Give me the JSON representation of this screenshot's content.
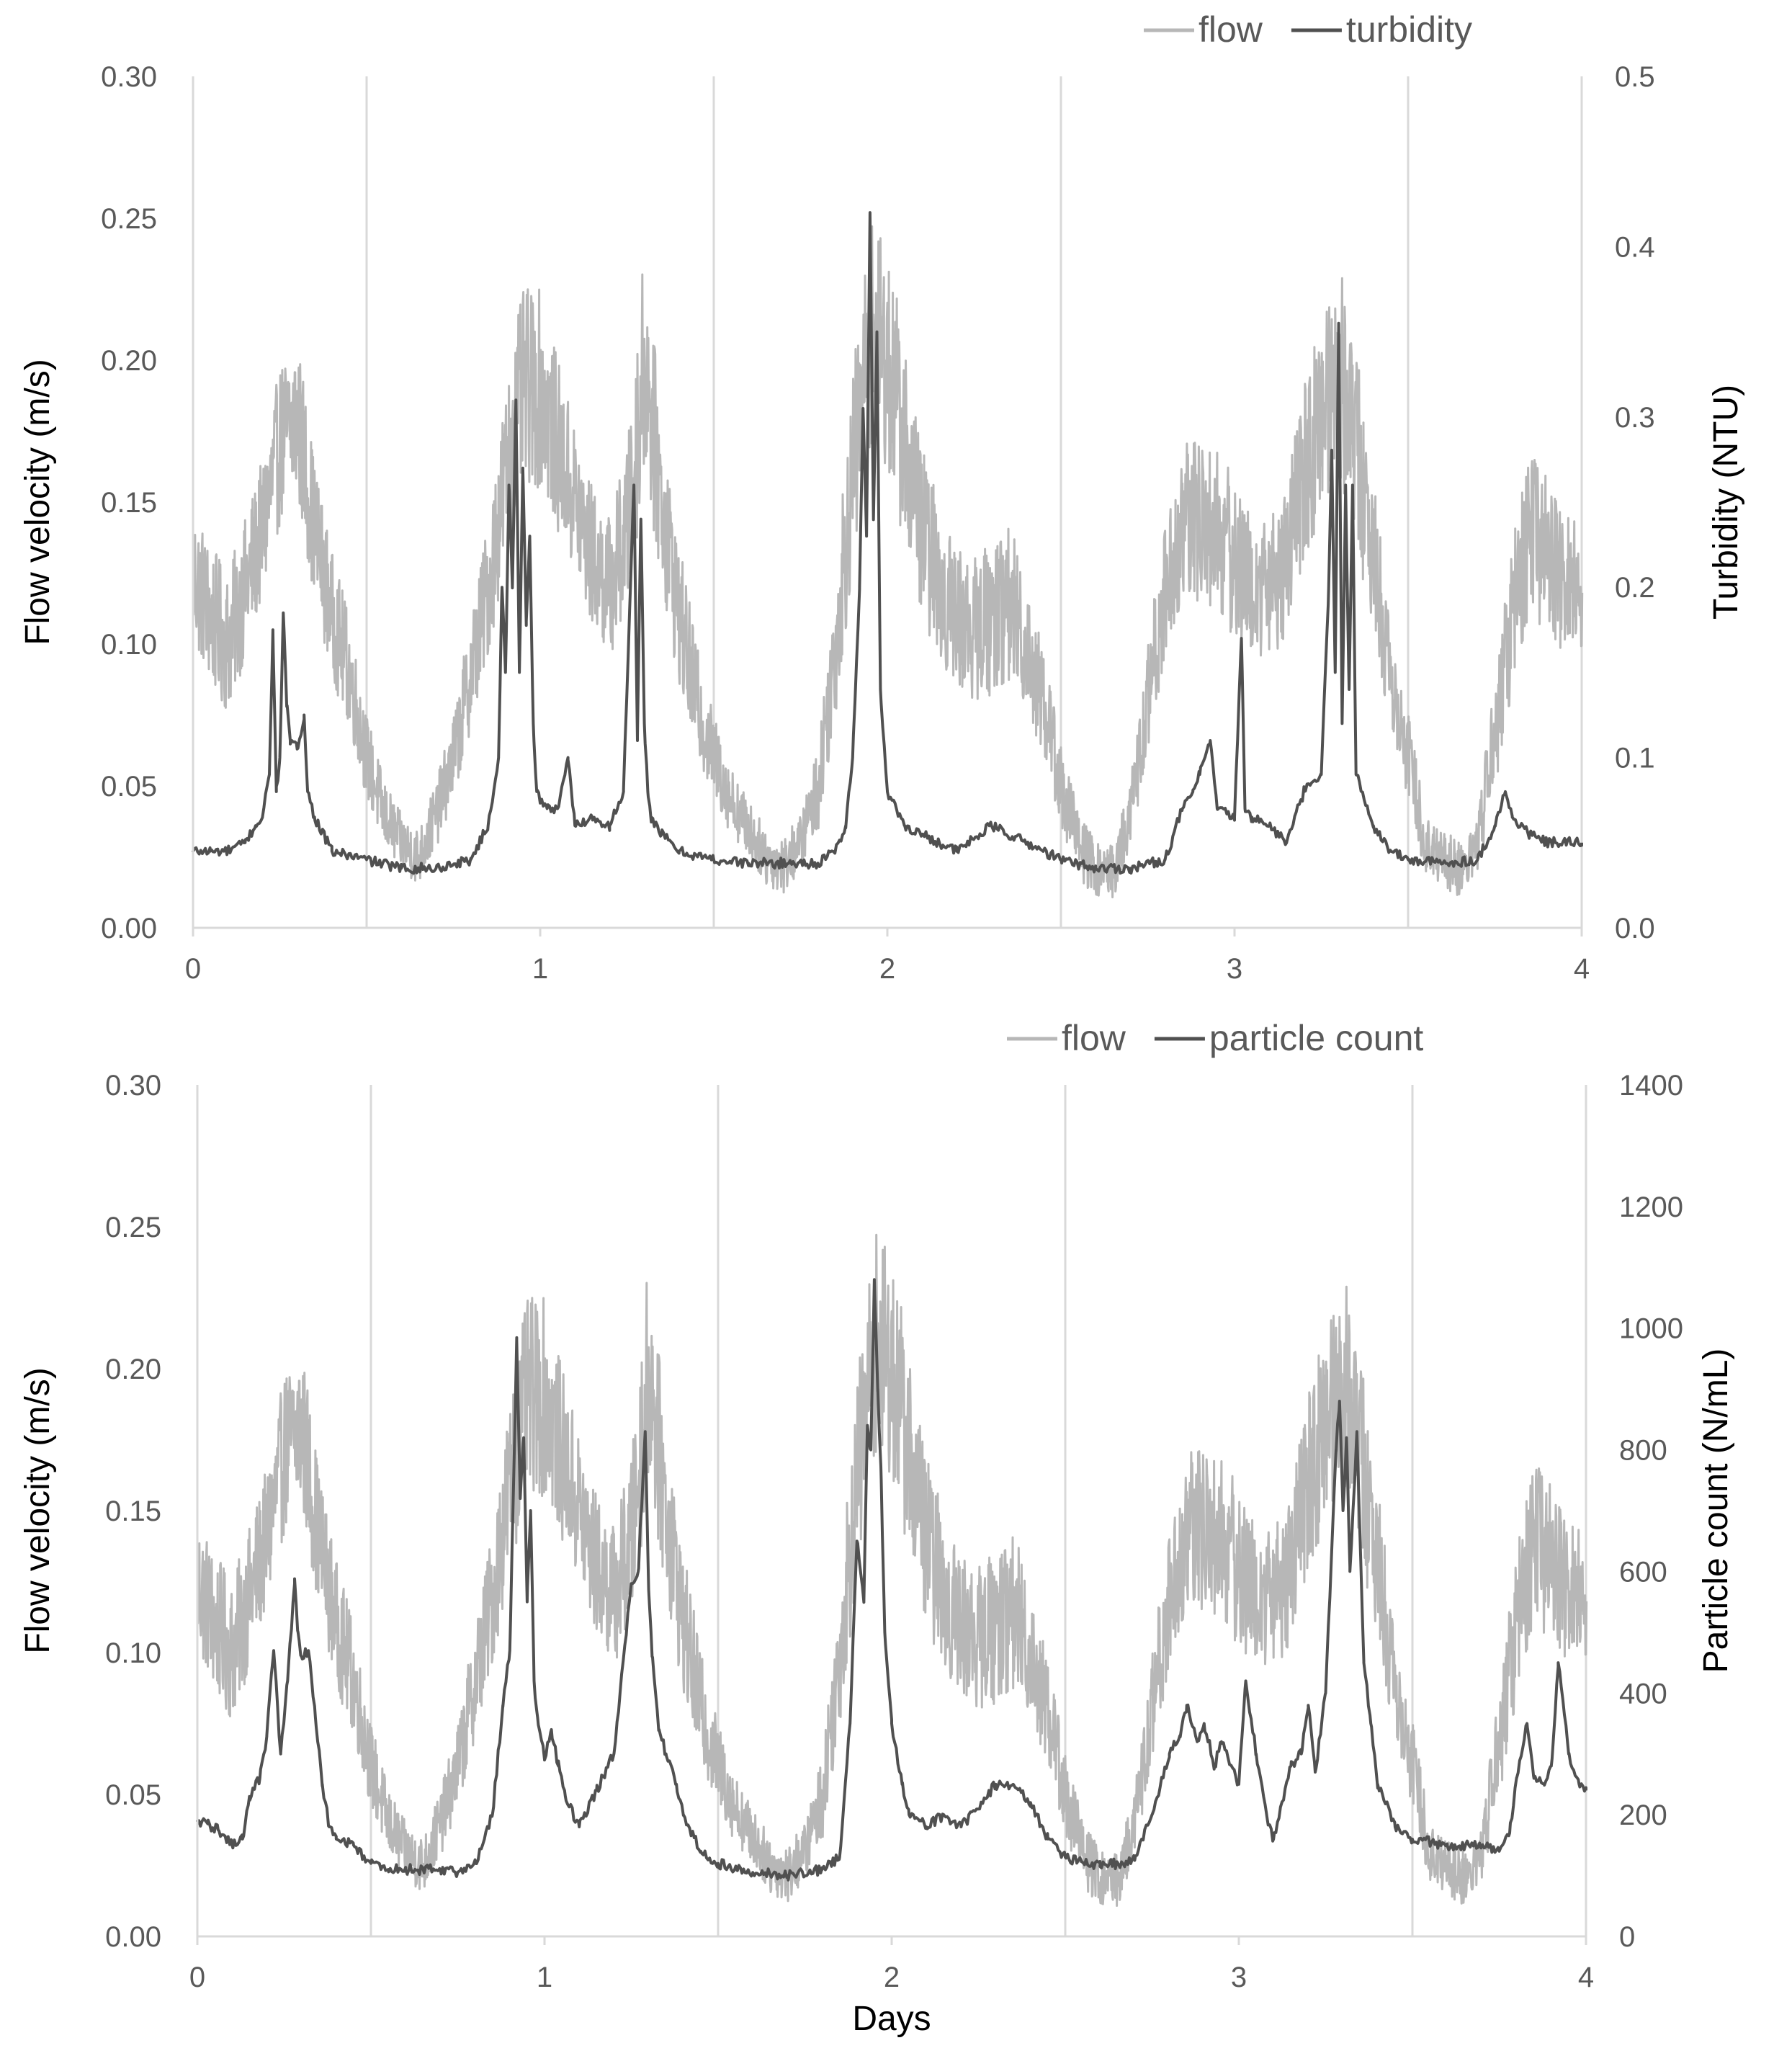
{
  "colors": {
    "flow": "#b7b7b7",
    "dark_series": "#505050",
    "grid": "#d9d9d9",
    "tick_text": "#595959"
  },
  "chart_data": [
    {
      "type": "line",
      "title": "",
      "xlabel": "",
      "ylabel": "Flow velocity (m/s)",
      "y2label": "Turbidity (NTU)",
      "xlim": [
        0,
        4
      ],
      "ylim": [
        0,
        0.3
      ],
      "y2lim": [
        0,
        0.5
      ],
      "x_ticks": [
        "0",
        "1",
        "2",
        "3",
        "4"
      ],
      "x_tick_values": [
        0,
        1,
        2,
        3,
        4
      ],
      "y_ticks": [
        "0.00",
        "0.05",
        "0.10",
        "0.15",
        "0.20",
        "0.25",
        "0.30"
      ],
      "y2_ticks": [
        "0.0",
        "0.1",
        "0.2",
        "0.3",
        "0.4",
        "0.5"
      ],
      "vertical_gridlines_at": [
        0.5,
        1.5,
        2.5,
        3.5,
        4.0
      ],
      "legend": [
        "flow",
        "turbidity"
      ],
      "legend_position": "top-right",
      "series": [
        {
          "name": "flow",
          "axis": "left",
          "band": true,
          "x": [
            0,
            0.05,
            0.1,
            0.15,
            0.2,
            0.25,
            0.3,
            0.35,
            0.4,
            0.45,
            0.5,
            0.55,
            0.6,
            0.65,
            0.7,
            0.75,
            0.8,
            0.85,
            0.9,
            0.95,
            1.0,
            1.05,
            1.1,
            1.15,
            1.2,
            1.25,
            1.3,
            1.35,
            1.4,
            1.45,
            1.5,
            1.55,
            1.6,
            1.65,
            1.7,
            1.75,
            1.8,
            1.85,
            1.9,
            1.95,
            2.0,
            2.05,
            2.1,
            2.15,
            2.2,
            2.25,
            2.3,
            2.35,
            2.4,
            2.45,
            2.5,
            2.55,
            2.6,
            2.65,
            2.7,
            2.75,
            2.8,
            2.85,
            2.9,
            2.95,
            3.0,
            3.05,
            3.1,
            3.15,
            3.2,
            3.25,
            3.3,
            3.35,
            3.4,
            3.45,
            3.5,
            3.55,
            3.6,
            3.65,
            3.7,
            3.75,
            3.8,
            3.85,
            3.9,
            3.95,
            4.0
          ],
          "values": [
            0.125,
            0.11,
            0.1,
            0.12,
            0.14,
            0.17,
            0.18,
            0.14,
            0.11,
            0.09,
            0.06,
            0.04,
            0.03,
            0.025,
            0.04,
            0.06,
            0.09,
            0.12,
            0.16,
            0.19,
            0.19,
            0.17,
            0.15,
            0.13,
            0.12,
            0.14,
            0.2,
            0.15,
            0.11,
            0.08,
            0.06,
            0.045,
            0.035,
            0.025,
            0.022,
            0.03,
            0.05,
            0.1,
            0.16,
            0.21,
            0.2,
            0.17,
            0.14,
            0.12,
            0.11,
            0.105,
            0.11,
            0.115,
            0.1,
            0.08,
            0.05,
            0.03,
            0.02,
            0.02,
            0.04,
            0.08,
            0.12,
            0.14,
            0.145,
            0.14,
            0.13,
            0.12,
            0.12,
            0.13,
            0.16,
            0.18,
            0.2,
            0.17,
            0.13,
            0.09,
            0.06,
            0.03,
            0.025,
            0.02,
            0.03,
            0.07,
            0.11,
            0.14,
            0.13,
            0.12,
            0.12
          ],
          "noise_amplitude": [
            0.025,
            0.025,
            0.025,
            0.025,
            0.025,
            0.028,
            0.03,
            0.025,
            0.022,
            0.02,
            0.015,
            0.012,
            0.01,
            0.01,
            0.012,
            0.015,
            0.02,
            0.025,
            0.03,
            0.035,
            0.035,
            0.03,
            0.028,
            0.025,
            0.025,
            0.03,
            0.04,
            0.03,
            0.025,
            0.02,
            0.015,
            0.012,
            0.01,
            0.01,
            0.01,
            0.01,
            0.015,
            0.025,
            0.035,
            0.04,
            0.04,
            0.035,
            0.03,
            0.028,
            0.025,
            0.025,
            0.028,
            0.028,
            0.025,
            0.02,
            0.015,
            0.012,
            0.01,
            0.01,
            0.012,
            0.02,
            0.025,
            0.03,
            0.03,
            0.03,
            0.028,
            0.025,
            0.025,
            0.028,
            0.032,
            0.035,
            0.04,
            0.035,
            0.028,
            0.02,
            0.015,
            0.012,
            0.01,
            0.01,
            0.012,
            0.02,
            0.028,
            0.03,
            0.028,
            0.025,
            0.025
          ]
        },
        {
          "name": "turbidity",
          "axis": "right",
          "x": [
            0,
            0.05,
            0.1,
            0.15,
            0.18,
            0.2,
            0.22,
            0.23,
            0.24,
            0.25,
            0.26,
            0.27,
            0.28,
            0.3,
            0.32,
            0.33,
            0.35,
            0.4,
            0.5,
            0.6,
            0.7,
            0.8,
            0.85,
            0.88,
            0.89,
            0.9,
            0.91,
            0.92,
            0.93,
            0.94,
            0.95,
            0.96,
            0.97,
            0.98,
            0.99,
            1.0,
            1.02,
            1.05,
            1.08,
            1.1,
            1.15,
            1.2,
            1.24,
            1.26,
            1.27,
            1.28,
            1.29,
            1.3,
            1.31,
            1.32,
            1.35,
            1.4,
            1.5,
            1.6,
            1.7,
            1.8,
            1.85,
            1.88,
            1.9,
            1.92,
            1.93,
            1.94,
            1.95,
            1.96,
            1.97,
            1.98,
            2.0,
            2.05,
            2.1,
            2.2,
            2.3,
            2.4,
            2.5,
            2.6,
            2.7,
            2.8,
            2.85,
            2.88,
            2.9,
            2.93,
            2.95,
            3.0,
            3.02,
            3.03,
            3.05,
            3.1,
            3.15,
            3.2,
            3.25,
            3.27,
            3.28,
            3.29,
            3.3,
            3.31,
            3.32,
            3.33,
            3.34,
            3.35,
            3.4,
            3.45,
            3.5,
            3.6,
            3.7,
            3.75,
            3.78,
            3.8,
            3.85,
            3.9,
            4.0
          ],
          "values": [
            0.045,
            0.045,
            0.045,
            0.05,
            0.06,
            0.065,
            0.09,
            0.175,
            0.08,
            0.1,
            0.185,
            0.13,
            0.11,
            0.105,
            0.125,
            0.08,
            0.065,
            0.045,
            0.04,
            0.035,
            0.035,
            0.04,
            0.06,
            0.1,
            0.2,
            0.15,
            0.26,
            0.2,
            0.31,
            0.15,
            0.27,
            0.18,
            0.23,
            0.12,
            0.08,
            0.075,
            0.07,
            0.07,
            0.1,
            0.06,
            0.065,
            0.06,
            0.08,
            0.2,
            0.26,
            0.11,
            0.24,
            0.12,
            0.08,
            0.065,
            0.055,
            0.045,
            0.04,
            0.038,
            0.038,
            0.038,
            0.045,
            0.06,
            0.1,
            0.2,
            0.305,
            0.23,
            0.42,
            0.24,
            0.35,
            0.14,
            0.08,
            0.06,
            0.055,
            0.045,
            0.06,
            0.05,
            0.04,
            0.035,
            0.035,
            0.04,
            0.07,
            0.08,
            0.09,
            0.11,
            0.07,
            0.065,
            0.17,
            0.07,
            0.065,
            0.06,
            0.05,
            0.08,
            0.09,
            0.19,
            0.28,
            0.15,
            0.355,
            0.12,
            0.26,
            0.14,
            0.26,
            0.09,
            0.06,
            0.045,
            0.04,
            0.038,
            0.04,
            0.06,
            0.08,
            0.065,
            0.055,
            0.05,
            0.05
          ]
        }
      ]
    },
    {
      "type": "line",
      "title": "",
      "xlabel": "Days",
      "ylabel": "Flow velocity (m/s)",
      "y2label": "Particle count (N/mL)",
      "xlim": [
        0,
        4
      ],
      "ylim": [
        0,
        0.3
      ],
      "y2lim": [
        0,
        1400
      ],
      "x_ticks": [
        "0",
        "1",
        "2",
        "3",
        "4"
      ],
      "x_tick_values": [
        0,
        1,
        2,
        3,
        4
      ],
      "y_ticks": [
        "0.00",
        "0.05",
        "0.10",
        "0.15",
        "0.20",
        "0.25",
        "0.30"
      ],
      "y2_ticks": [
        "0",
        "200",
        "400",
        "600",
        "800",
        "1000",
        "1200",
        "1400"
      ],
      "vertical_gridlines_at": [
        0.5,
        1.5,
        2.5,
        3.5,
        4.0
      ],
      "legend": [
        "flow",
        "particle count"
      ],
      "legend_position": "top-right",
      "series": [
        {
          "name": "flow",
          "axis": "left",
          "band": true,
          "x": [
            0,
            0.05,
            0.1,
            0.15,
            0.2,
            0.25,
            0.3,
            0.35,
            0.4,
            0.45,
            0.5,
            0.55,
            0.6,
            0.65,
            0.7,
            0.75,
            0.8,
            0.85,
            0.9,
            0.95,
            1.0,
            1.05,
            1.1,
            1.15,
            1.2,
            1.25,
            1.3,
            1.35,
            1.4,
            1.45,
            1.5,
            1.55,
            1.6,
            1.65,
            1.7,
            1.75,
            1.8,
            1.85,
            1.9,
            1.95,
            2.0,
            2.05,
            2.1,
            2.15,
            2.2,
            2.25,
            2.3,
            2.35,
            2.4,
            2.45,
            2.5,
            2.55,
            2.6,
            2.65,
            2.7,
            2.75,
            2.8,
            2.85,
            2.9,
            2.95,
            3.0,
            3.05,
            3.1,
            3.15,
            3.2,
            3.25,
            3.3,
            3.35,
            3.4,
            3.45,
            3.5,
            3.55,
            3.6,
            3.65,
            3.7,
            3.75,
            3.8,
            3.85,
            3.9,
            3.95,
            4.0
          ],
          "values": [
            0.125,
            0.11,
            0.1,
            0.12,
            0.14,
            0.17,
            0.18,
            0.14,
            0.11,
            0.09,
            0.06,
            0.04,
            0.03,
            0.025,
            0.04,
            0.06,
            0.09,
            0.12,
            0.16,
            0.19,
            0.19,
            0.17,
            0.15,
            0.13,
            0.12,
            0.14,
            0.2,
            0.15,
            0.11,
            0.08,
            0.06,
            0.045,
            0.035,
            0.025,
            0.022,
            0.03,
            0.05,
            0.1,
            0.16,
            0.21,
            0.2,
            0.17,
            0.14,
            0.12,
            0.11,
            0.105,
            0.11,
            0.115,
            0.1,
            0.08,
            0.05,
            0.03,
            0.02,
            0.02,
            0.04,
            0.08,
            0.12,
            0.14,
            0.145,
            0.14,
            0.13,
            0.12,
            0.12,
            0.13,
            0.16,
            0.18,
            0.2,
            0.17,
            0.13,
            0.09,
            0.06,
            0.03,
            0.025,
            0.02,
            0.03,
            0.07,
            0.11,
            0.14,
            0.13,
            0.12,
            0.12
          ],
          "noise_amplitude": [
            0.025,
            0.025,
            0.025,
            0.025,
            0.025,
            0.028,
            0.03,
            0.025,
            0.022,
            0.02,
            0.015,
            0.012,
            0.01,
            0.01,
            0.012,
            0.015,
            0.02,
            0.025,
            0.03,
            0.035,
            0.035,
            0.03,
            0.028,
            0.025,
            0.025,
            0.03,
            0.04,
            0.03,
            0.025,
            0.02,
            0.015,
            0.012,
            0.01,
            0.01,
            0.01,
            0.01,
            0.015,
            0.025,
            0.035,
            0.04,
            0.04,
            0.035,
            0.03,
            0.028,
            0.025,
            0.025,
            0.028,
            0.028,
            0.025,
            0.02,
            0.015,
            0.012,
            0.01,
            0.01,
            0.012,
            0.02,
            0.025,
            0.03,
            0.03,
            0.03,
            0.028,
            0.025,
            0.025,
            0.028,
            0.032,
            0.035,
            0.04,
            0.035,
            0.028,
            0.02,
            0.015,
            0.012,
            0.01,
            0.01,
            0.012,
            0.02,
            0.028,
            0.03,
            0.028,
            0.025,
            0.025
          ]
        },
        {
          "name": "particle count",
          "axis": "right",
          "x": [
            0,
            0.03,
            0.06,
            0.1,
            0.13,
            0.15,
            0.18,
            0.2,
            0.22,
            0.24,
            0.26,
            0.28,
            0.29,
            0.3,
            0.32,
            0.34,
            0.36,
            0.38,
            0.4,
            0.45,
            0.5,
            0.55,
            0.6,
            0.7,
            0.75,
            0.8,
            0.85,
            0.88,
            0.9,
            0.92,
            0.93,
            0.94,
            0.95,
            0.96,
            0.97,
            0.98,
            1.0,
            1.02,
            1.04,
            1.06,
            1.1,
            1.15,
            1.2,
            1.25,
            1.27,
            1.29,
            1.3,
            1.31,
            1.33,
            1.35,
            1.38,
            1.4,
            1.45,
            1.5,
            1.6,
            1.7,
            1.8,
            1.85,
            1.88,
            1.9,
            1.92,
            1.93,
            1.94,
            1.95,
            1.96,
            1.97,
            1.98,
            2.0,
            2.03,
            2.05,
            2.08,
            2.1,
            2.15,
            2.2,
            2.3,
            2.35,
            2.4,
            2.45,
            2.5,
            2.6,
            2.7,
            2.75,
            2.78,
            2.8,
            2.83,
            2.85,
            2.88,
            2.9,
            2.93,
            2.95,
            3.0,
            3.02,
            3.05,
            3.08,
            3.1,
            3.15,
            3.18,
            3.2,
            3.22,
            3.25,
            3.28,
            3.29,
            3.3,
            3.31,
            3.32,
            3.34,
            3.36,
            3.38,
            3.4,
            3.45,
            3.5,
            3.6,
            3.7,
            3.75,
            3.78,
            3.8,
            3.83,
            3.85,
            3.88,
            3.9,
            3.92,
            3.95,
            3.98,
            4.0
          ],
          "values": [
            190,
            185,
            175,
            150,
            160,
            230,
            260,
            330,
            470,
            300,
            420,
            580,
            500,
            460,
            470,
            360,
            250,
            180,
            160,
            150,
            120,
            110,
            110,
            110,
            105,
            120,
            200,
            380,
            470,
            980,
            720,
            820,
            550,
            700,
            420,
            360,
            290,
            340,
            280,
            230,
            180,
            240,
            300,
            580,
            600,
            830,
            570,
            460,
            340,
            300,
            250,
            200,
            140,
            120,
            105,
            100,
            110,
            130,
            350,
            650,
            550,
            840,
            800,
            1080,
            900,
            750,
            500,
            350,
            250,
            200,
            190,
            180,
            200,
            180,
            250,
            250,
            220,
            160,
            130,
            115,
            125,
            200,
            260,
            300,
            330,
            380,
            320,
            350,
            280,
            320,
            250,
            420,
            300,
            200,
            160,
            280,
            300,
            380,
            270,
            400,
            800,
            880,
            700,
            820,
            600,
            830,
            450,
            350,
            250,
            180,
            160,
            150,
            150,
            140,
            170,
            260,
            350,
            260,
            250,
            280,
            450,
            300,
            250,
            240
          ]
        }
      ]
    }
  ]
}
